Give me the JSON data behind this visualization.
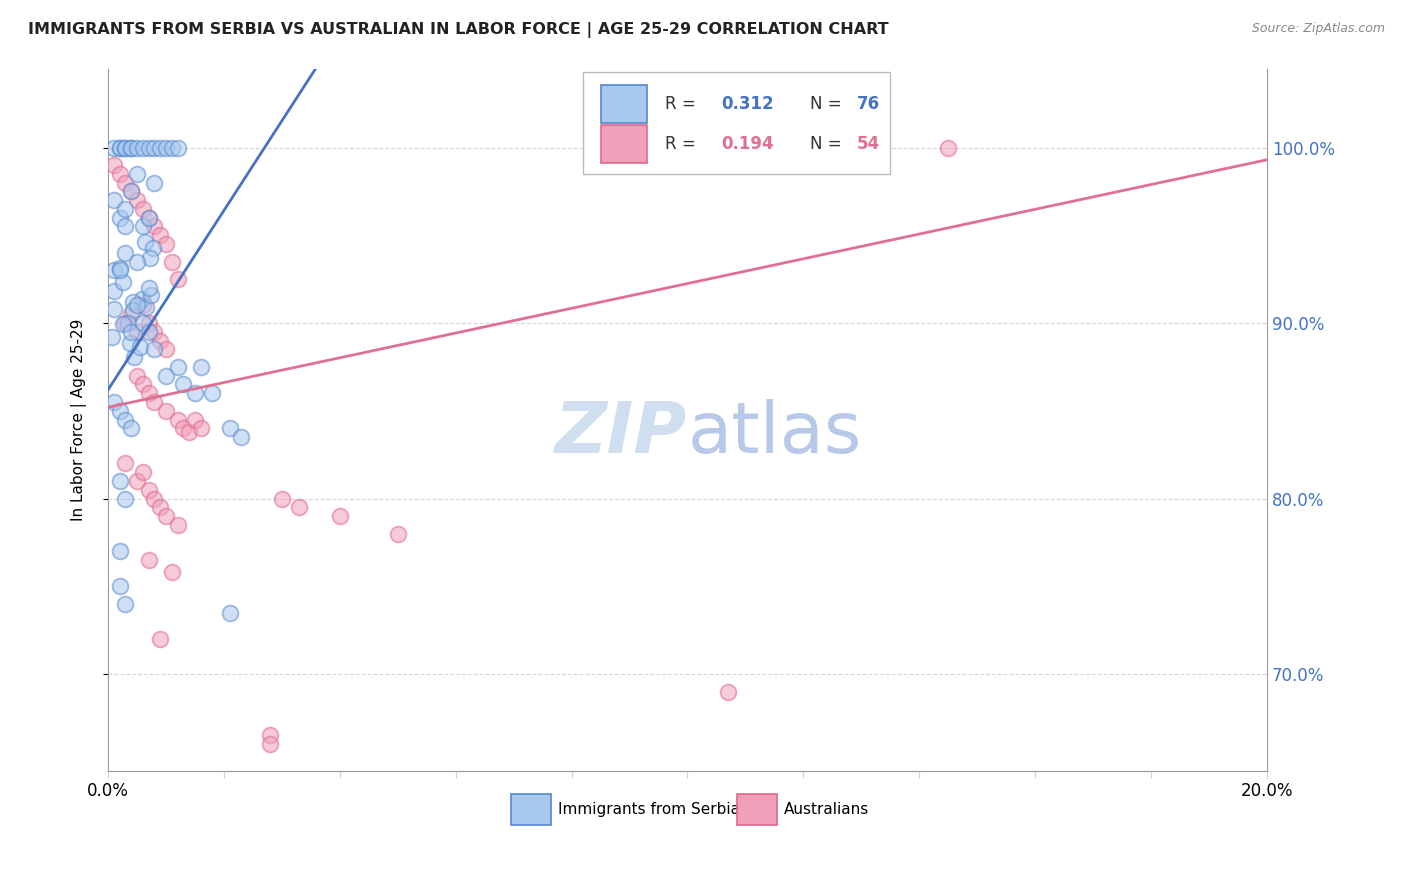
{
  "title": "IMMIGRANTS FROM SERBIA VS AUSTRALIAN IN LABOR FORCE | AGE 25-29 CORRELATION CHART",
  "source": "Source: ZipAtlas.com",
  "ylabel": "In Labor Force | Age 25-29",
  "ytick_labels": [
    "70.0%",
    "80.0%",
    "90.0%",
    "100.0%"
  ],
  "ytick_values": [
    0.7,
    0.8,
    0.9,
    1.0
  ],
  "legend_blue_R": "0.312",
  "legend_blue_N": "76",
  "legend_pink_R": "0.194",
  "legend_pink_N": "54",
  "blue_color": "#A8C8F0",
  "pink_color": "#F0A0B8",
  "blue_edge_color": "#5588CC",
  "pink_edge_color": "#E06888",
  "blue_line_color": "#4472C4",
  "pink_line_color": "#E07090",
  "watermark_color": "#D0DFF0",
  "xlim": [
    0.0,
    0.2
  ],
  "ylim": [
    0.645,
    1.045
  ],
  "blue_line_x0": 0.0,
  "blue_line_y0": 0.862,
  "blue_line_x1": 0.028,
  "blue_line_y1": 1.005,
  "pink_line_x0": 0.0,
  "pink_line_y0": 0.852,
  "pink_line_x1": 0.2,
  "pink_line_y1": 0.993,
  "scatter_marker_size": 130,
  "scatter_alpha": 0.55,
  "scatter_linewidth": 1.3
}
